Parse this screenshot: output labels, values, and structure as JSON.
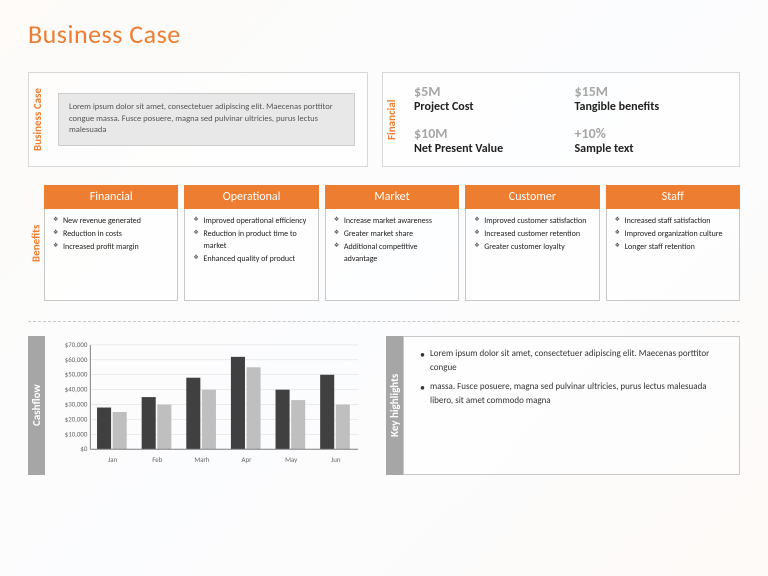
{
  "title": "Business Case",
  "business_case": {
    "label": "Business Case",
    "text": "Lorem ipsum dolor sit amet, consectetuer adipiscing elit. Maecenas porttitor congue massa. Fusce posuere, magna sed pulvinar ultricies, purus lectus malesuada"
  },
  "financial": {
    "label": "Financial",
    "cells": [
      {
        "value": "$5M",
        "label": "Project Cost"
      },
      {
        "value": "$15M",
        "label": "Tangible benefits"
      },
      {
        "value": "$10M",
        "label": "Net Present Value"
      },
      {
        "value": "+10%",
        "label": "Sample text"
      }
    ]
  },
  "benefits": {
    "label": "Benefits",
    "cards": [
      {
        "title": "Financial",
        "items": [
          "New revenue generated",
          "Reduction in costs",
          "Increased profit margin"
        ]
      },
      {
        "title": "Operational",
        "items": [
          "Improved operational efficiency",
          "Reduction in product time to market",
          "Enhanced quality of product"
        ]
      },
      {
        "title": "Market",
        "items": [
          "Increase market awareness",
          "Greater market share",
          "Additional competitive advantage"
        ]
      },
      {
        "title": "Customer",
        "items": [
          "Improved customer satisfaction",
          "Increased customer retention",
          "Greater customer loyalty"
        ]
      },
      {
        "title": "Staff",
        "items": [
          "Increased staff satisfaction",
          "Improved organization culture",
          "Longer staff retention"
        ]
      }
    ]
  },
  "cashflow": {
    "label": "Cashflow",
    "type": "bar",
    "categories": [
      "Jan",
      "Feb",
      "Marh",
      "Apr",
      "May",
      "Jun"
    ],
    "series": [
      {
        "color": "#404040",
        "values": [
          28000,
          35000,
          48000,
          62000,
          40000,
          50000
        ]
      },
      {
        "color": "#bfbfbf",
        "values": [
          25000,
          30000,
          40000,
          55000,
          33000,
          30000
        ]
      }
    ],
    "ylim": [
      0,
      70000
    ],
    "ytick_step": 10000,
    "yticks": [
      "$0",
      "$10,000",
      "$20,000",
      "$30,000",
      "$40,000",
      "$50,000",
      "$60,000",
      "$70,000"
    ],
    "grid_color": "#d9d9d9",
    "axis_color": "#808080",
    "label_fontsize": 7,
    "bar_width": 0.35
  },
  "highlights": {
    "label": "Key highlights",
    "items": [
      "Lorem ipsum dolor sit amet, consectetuer adipiscing elit. Maecenas porttitor congue",
      "massa. Fusce posuere, magna sed pulvinar ultricies, purus lectus malesuada libero, sit amet commodo magna"
    ]
  },
  "colors": {
    "accent": "#ed7d31",
    "gray": "#a6a6a6",
    "text_muted": "#808080",
    "border": "#c8c8c8"
  }
}
